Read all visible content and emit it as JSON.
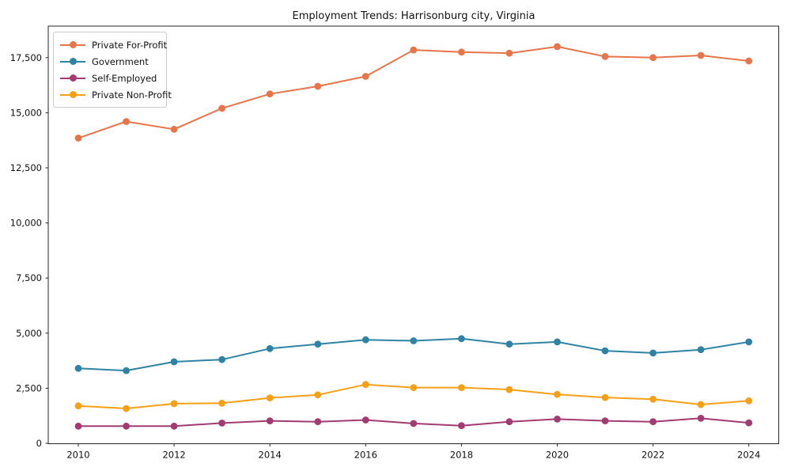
{
  "chart_data": {
    "type": "line",
    "title": "Employment Trends: Harrisonburg city, Virginia",
    "xlabel": "",
    "ylabel": "",
    "x": [
      2010,
      2011,
      2012,
      2013,
      2014,
      2015,
      2016,
      2017,
      2018,
      2019,
      2020,
      2021,
      2022,
      2023,
      2024
    ],
    "series": [
      {
        "name": "Private For-Profit",
        "color": "#E8744A",
        "values": [
          13850,
          14600,
          14250,
          15200,
          15850,
          16200,
          16650,
          17850,
          17750,
          17700,
          18000,
          17550,
          17500,
          17600,
          17350
        ]
      },
      {
        "name": "Government",
        "color": "#2E83A5",
        "values": [
          3400,
          3300,
          3700,
          3800,
          4300,
          4500,
          4700,
          4650,
          4750,
          4500,
          4600,
          4200,
          4100,
          4250,
          4600
        ]
      },
      {
        "name": "Self-Employed",
        "color": "#A23B72",
        "values": [
          780,
          780,
          780,
          920,
          1020,
          980,
          1060,
          900,
          800,
          980,
          1100,
          1020,
          980,
          1140,
          930
        ]
      },
      {
        "name": "Private Non-Profit",
        "color": "#F5A017",
        "values": [
          1700,
          1580,
          1800,
          1820,
          2060,
          2200,
          2670,
          2530,
          2530,
          2440,
          2220,
          2080,
          2000,
          1760,
          1930
        ]
      }
    ],
    "ylim": [
      0,
      18930
    ],
    "xlim": [
      2009.37,
      2024.63
    ],
    "yticks": [
      0,
      2500,
      5000,
      7500,
      10000,
      12500,
      15000,
      17500
    ],
    "ytick_labels": [
      "0",
      "2,500",
      "5,000",
      "7,500",
      "10,000",
      "12,500",
      "15,000",
      "17,500"
    ],
    "xticks": [
      2010,
      2012,
      2014,
      2016,
      2018,
      2020,
      2022,
      2024
    ],
    "xtick_labels": [
      "2010",
      "2012",
      "2014",
      "2016",
      "2018",
      "2020",
      "2022",
      "2024"
    ],
    "legend_position": "upper left",
    "grid": false,
    "marker": "o"
  }
}
